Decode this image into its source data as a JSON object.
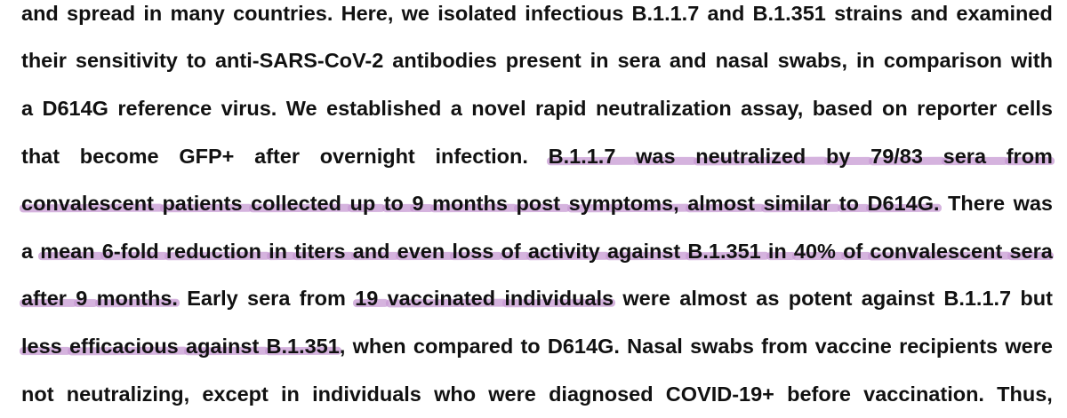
{
  "document": {
    "highlight_color": "#c79ad3",
    "text_color": "#111111",
    "lines": [
      {
        "justify": true,
        "segments": [
          {
            "text": "and spread in many countries. Here, we isolated infectious B.1.1.7 and B.1.351 strains and examined",
            "highlighted": false
          }
        ]
      },
      {
        "justify": true,
        "segments": [
          {
            "text": "their sensitivity to anti-SARS-CoV-2 antibodies present in sera and nasal swabs, in comparison with",
            "highlighted": false
          }
        ]
      },
      {
        "justify": true,
        "segments": [
          {
            "text": "a D614G reference virus. We established a novel rapid neutralization assay, based on reporter cells",
            "highlighted": false
          }
        ]
      },
      {
        "justify": true,
        "segments": [
          {
            "text": "that become GFP+ after overnight infection.",
            "highlighted": false
          },
          {
            "text": "B.1.1.7 was neutralized by 79/83 sera from",
            "highlighted": true
          }
        ]
      },
      {
        "justify": true,
        "segments": [
          {
            "text": "convalescent patients collected up to 9 months post symptoms, almost similar to D614G.",
            "highlighted": true
          },
          {
            "text": "There was",
            "highlighted": false
          }
        ]
      },
      {
        "justify": true,
        "segments": [
          {
            "text": "a",
            "highlighted": false
          },
          {
            "text": "mean 6-fold reduction in titers and even loss of activity against B.1.351 in 40% of convalescent sera",
            "highlighted": true
          }
        ]
      },
      {
        "justify": true,
        "segments": [
          {
            "text": "after 9 months.",
            "highlighted": true
          },
          {
            "text": "Early sera from",
            "highlighted": false
          },
          {
            "text": "19 vaccinated individuals",
            "highlighted": true
          },
          {
            "text": "were almost as potent against B.1.1.7 but",
            "highlighted": false
          }
        ]
      },
      {
        "justify": true,
        "segments": [
          {
            "text": "less efficacious against B.1.351",
            "highlighted": true
          },
          {
            "text": ", when compared to D614G. Nasal swabs from vaccine recipients were",
            "highlighted": false,
            "no_space_before": true
          }
        ]
      },
      {
        "justify": true,
        "segments": [
          {
            "text": "not neutralizing, except in individuals who were diagnosed COVID-19+ before vaccination. Thus,",
            "highlighted": false
          }
        ]
      }
    ]
  }
}
